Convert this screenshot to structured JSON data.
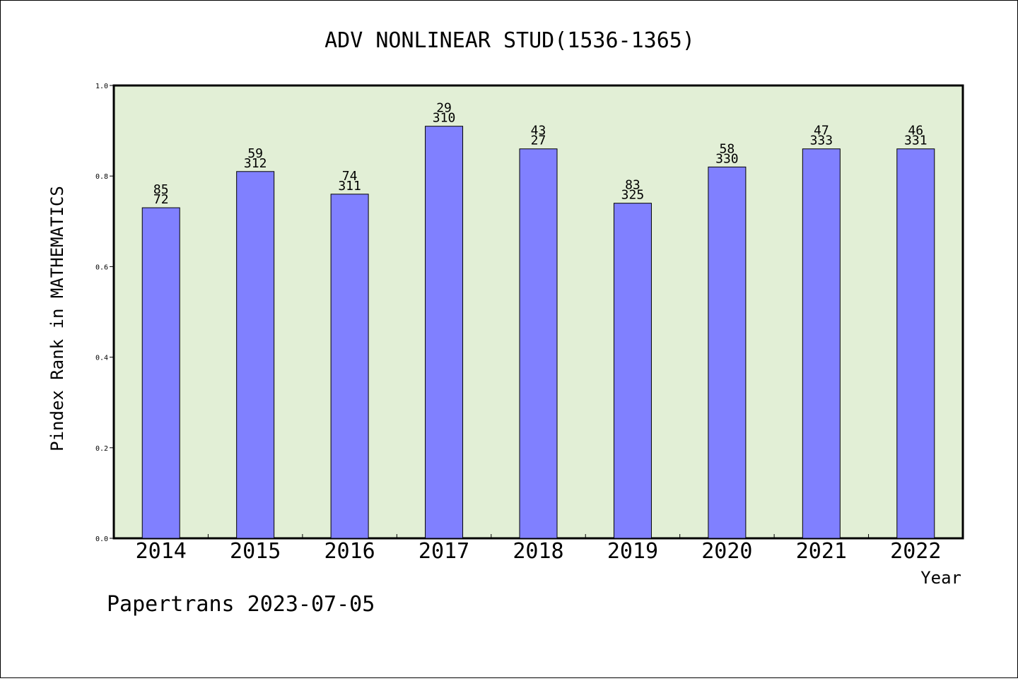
{
  "chart_data": {
    "type": "bar",
    "title": "ADV NONLINEAR STUD(1536-1365)",
    "xlabel": "Year",
    "ylabel": "Pindex Rank in MATHEMATICS",
    "footer": "Papertrans 2023-07-05",
    "categories": [
      "2014",
      "2015",
      "2016",
      "2017",
      "2018",
      "2019",
      "2020",
      "2021",
      "2022"
    ],
    "values": [
      0.73,
      0.81,
      0.76,
      0.91,
      0.86,
      0.74,
      0.82,
      0.86,
      0.86
    ],
    "top_labels": [
      "85",
      "59",
      "74",
      "29",
      "43",
      "83",
      "58",
      "47",
      "46"
    ],
    "bottom_labels": [
      "72",
      "312",
      "311",
      "310",
      "27",
      "325",
      "330",
      "333",
      "331"
    ],
    "yticks": [
      "0.0",
      "0.2",
      "0.4",
      "0.6",
      "0.8",
      "1.0"
    ],
    "ylim": [
      0,
      1.0
    ],
    "grid": false,
    "colors": {
      "plot_background": "#e2efd6",
      "bar_fill": "#8080ff",
      "bar_stroke": "#000000"
    }
  }
}
